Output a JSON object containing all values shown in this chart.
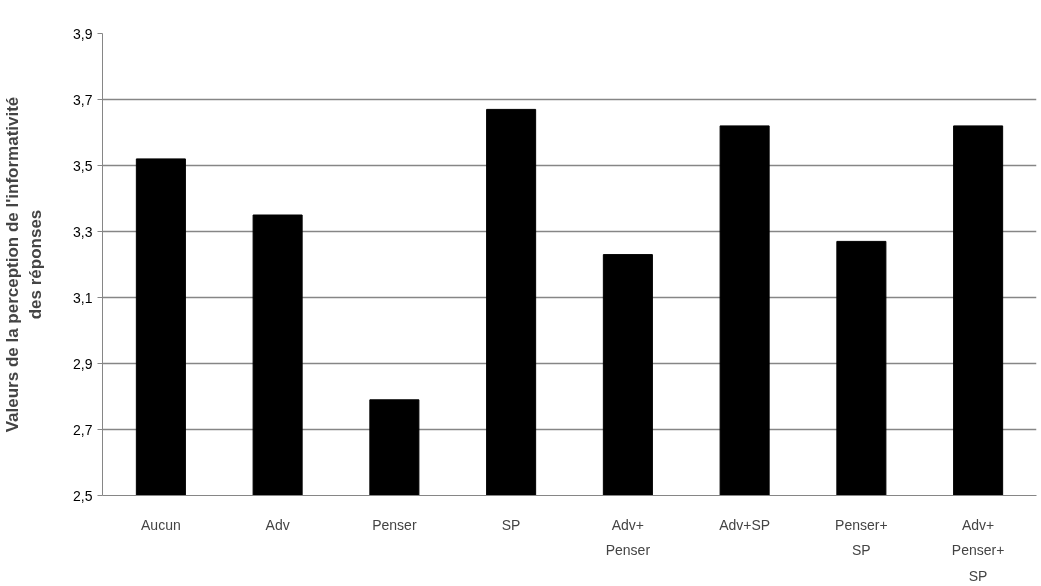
{
  "chart_data": {
    "type": "bar",
    "ylabel": "Valeurs de la perception de l'informativité des réponses",
    "categories": [
      "Aucun",
      "Adv",
      "Penser",
      "SP",
      "Adv+ Penser",
      "Adv+SP",
      "Penser+ SP",
      "Adv+ Penser+ SP"
    ],
    "values": [
      3.52,
      3.35,
      2.79,
      3.67,
      3.23,
      3.62,
      3.27,
      3.62
    ],
    "color": "#000000",
    "ylim": [
      2.5,
      3.9
    ],
    "yticks": [
      {
        "value": 2.5,
        "label": "2,5"
      },
      {
        "value": 2.7,
        "label": "2,7"
      },
      {
        "value": 2.9,
        "label": "2,9"
      },
      {
        "value": 3.1,
        "label": "3,1"
      },
      {
        "value": 3.3,
        "label": "3,3"
      },
      {
        "value": 3.5,
        "label": "3,5"
      },
      {
        "value": 3.7,
        "label": "3,7"
      },
      {
        "value": 3.9,
        "label": "3,9"
      }
    ],
    "grid": "y"
  }
}
